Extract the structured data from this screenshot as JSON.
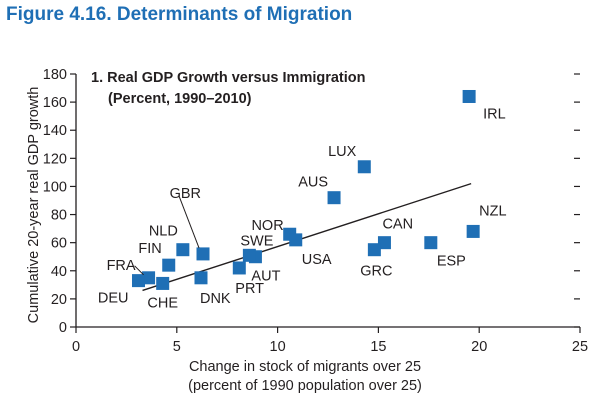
{
  "figure": {
    "title": "Figure 4.16.  Determinants of Migration"
  },
  "colors": {
    "title": "#1f6fb5",
    "marker": "#1f6fb5",
    "axis": "#231f20",
    "trend": "#231f20"
  },
  "chart_data": {
    "type": "scatter",
    "panel_title": "1. Real GDP Growth versus Immigration",
    "panel_subtitle": "(Percent, 1990–2010)",
    "xlabel": "Change in stock of migrants over 25",
    "xlabel_line2": "(percent of 1990 population over 25)",
    "ylabel": "Cumulative 20-year real GDP growth",
    "xlim": [
      0,
      25
    ],
    "ylim": [
      0,
      180
    ],
    "xticks": [
      0,
      5,
      10,
      15,
      20,
      25
    ],
    "yticks": [
      0,
      20,
      40,
      60,
      80,
      100,
      120,
      140,
      160,
      180
    ],
    "grid": false,
    "trendline": {
      "x": [
        3.3,
        19.6
      ],
      "y": [
        26,
        102
      ]
    },
    "points": [
      {
        "label": "IRL",
        "x": 19.5,
        "y": 164
      },
      {
        "label": "LUX",
        "x": 14.3,
        "y": 114
      },
      {
        "label": "AUS",
        "x": 12.8,
        "y": 92
      },
      {
        "label": "NZL",
        "x": 19.7,
        "y": 68
      },
      {
        "label": "CAN",
        "x": 15.3,
        "y": 60
      },
      {
        "label": "ESP",
        "x": 17.6,
        "y": 60
      },
      {
        "label": "GRC",
        "x": 14.8,
        "y": 55
      },
      {
        "label": "NOR",
        "x": 10.6,
        "y": 66
      },
      {
        "label": "USA",
        "x": 10.9,
        "y": 62
      },
      {
        "label": "AUT",
        "x": 8.9,
        "y": 50
      },
      {
        "label": "PRT",
        "x": 8.1,
        "y": 42
      },
      {
        "label": "SWE",
        "x": 8.6,
        "y": 51
      },
      {
        "label": "GBR",
        "x": 6.3,
        "y": 52
      },
      {
        "label": "DNK",
        "x": 6.2,
        "y": 35
      },
      {
        "label": "NLD",
        "x": 5.3,
        "y": 55
      },
      {
        "label": "FIN",
        "x": 4.6,
        "y": 44
      },
      {
        "label": "FRA",
        "x": 3.6,
        "y": 35
      },
      {
        "label": "DEU",
        "x": 3.1,
        "y": 33
      },
      {
        "label": "CHE",
        "x": 4.3,
        "y": 31
      }
    ]
  }
}
